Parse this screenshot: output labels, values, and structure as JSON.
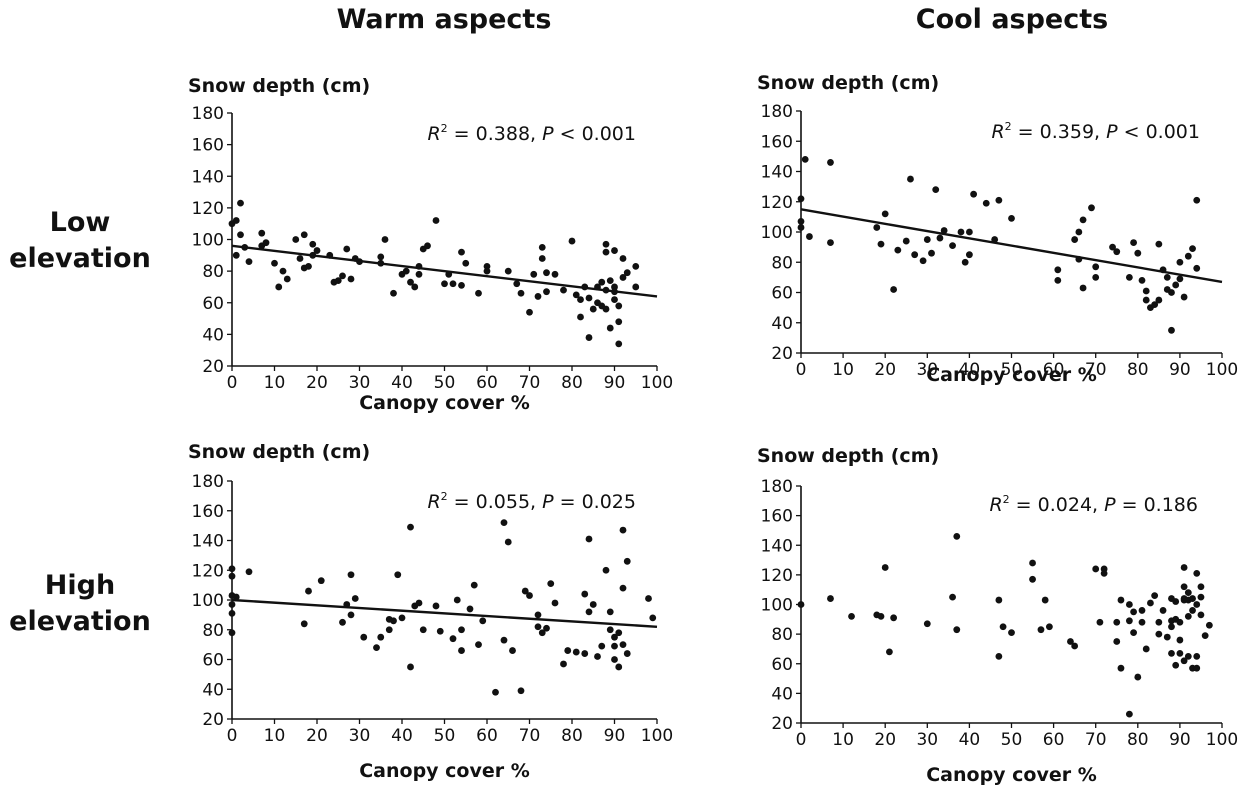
{
  "headers": {
    "col1": "Warm aspects",
    "col2": "Cool aspects",
    "row1": [
      "Low",
      "elevation"
    ],
    "row2": [
      "High",
      "elevation"
    ]
  },
  "chart_data": [
    {
      "type": "scatter",
      "panel": "Warm aspects, Low elevation",
      "xlabel": "Canopy cover %",
      "ylabel": "Snow depth (cm)",
      "xlim": [
        0,
        100
      ],
      "ylim": [
        20,
        180
      ],
      "xticks": [
        0,
        10,
        20,
        30,
        40,
        50,
        60,
        70,
        80,
        90,
        100
      ],
      "yticks": [
        20,
        40,
        60,
        80,
        100,
        120,
        140,
        160,
        180
      ],
      "annotation": {
        "r2_label": "R",
        "r2_sup": "2",
        "r2_value": " = 0.388, ",
        "p_label": "P",
        "p_value": " < 0.001"
      },
      "trendline": {
        "x": [
          0,
          100
        ],
        "y": [
          96,
          64
        ]
      },
      "points": [
        [
          0,
          110
        ],
        [
          1,
          112
        ],
        [
          1,
          90
        ],
        [
          2,
          123
        ],
        [
          2,
          103
        ],
        [
          3,
          95
        ],
        [
          4,
          86
        ],
        [
          7,
          104
        ],
        [
          7,
          96
        ],
        [
          8,
          98
        ],
        [
          10,
          85
        ],
        [
          11,
          70
        ],
        [
          12,
          80
        ],
        [
          13,
          75
        ],
        [
          15,
          100
        ],
        [
          16,
          88
        ],
        [
          17,
          103
        ],
        [
          17,
          82
        ],
        [
          18,
          83
        ],
        [
          19,
          90
        ],
        [
          19,
          97
        ],
        [
          20,
          93
        ],
        [
          23,
          90
        ],
        [
          24,
          73
        ],
        [
          25,
          74
        ],
        [
          26,
          77
        ],
        [
          27,
          94
        ],
        [
          28,
          75
        ],
        [
          29,
          88
        ],
        [
          30,
          86
        ],
        [
          35,
          85
        ],
        [
          35,
          89
        ],
        [
          36,
          100
        ],
        [
          38,
          66
        ],
        [
          40,
          78
        ],
        [
          41,
          80
        ],
        [
          42,
          73
        ],
        [
          43,
          70
        ],
        [
          44,
          83
        ],
        [
          44,
          78
        ],
        [
          45,
          94
        ],
        [
          46,
          96
        ],
        [
          48,
          112
        ],
        [
          50,
          72
        ],
        [
          51,
          78
        ],
        [
          52,
          72
        ],
        [
          54,
          92
        ],
        [
          54,
          71
        ],
        [
          55,
          85
        ],
        [
          58,
          66
        ],
        [
          60,
          83
        ],
        [
          60,
          80
        ],
        [
          65,
          80
        ],
        [
          67,
          72
        ],
        [
          68,
          66
        ],
        [
          70,
          54
        ],
        [
          71,
          78
        ],
        [
          72,
          64
        ],
        [
          73,
          95
        ],
        [
          73,
          88
        ],
        [
          74,
          79
        ],
        [
          74,
          67
        ],
        [
          76,
          78
        ],
        [
          78,
          68
        ],
        [
          80,
          99
        ],
        [
          81,
          65
        ],
        [
          82,
          62
        ],
        [
          82,
          51
        ],
        [
          83,
          70
        ],
        [
          84,
          38
        ],
        [
          84,
          63
        ],
        [
          85,
          56
        ],
        [
          86,
          70
        ],
        [
          86,
          60
        ],
        [
          87,
          73
        ],
        [
          87,
          58
        ],
        [
          88,
          92
        ],
        [
          88,
          97
        ],
        [
          88,
          68
        ],
        [
          88,
          56
        ],
        [
          89,
          44
        ],
        [
          89,
          74
        ],
        [
          90,
          93
        ],
        [
          90,
          70
        ],
        [
          90,
          67
        ],
        [
          90,
          62
        ],
        [
          91,
          48
        ],
        [
          91,
          34
        ],
        [
          91,
          58
        ],
        [
          92,
          76
        ],
        [
          92,
          88
        ],
        [
          93,
          79
        ],
        [
          95,
          83
        ],
        [
          95,
          70
        ]
      ]
    },
    {
      "type": "scatter",
      "panel": "Cool aspects, Low elevation",
      "xlabel": "Canopy cover %",
      "ylabel": "Snow depth (cm)",
      "xlim": [
        0,
        100
      ],
      "ylim": [
        20,
        180
      ],
      "xticks": [
        0,
        10,
        20,
        30,
        40,
        50,
        60,
        70,
        80,
        90,
        100
      ],
      "yticks": [
        20,
        40,
        60,
        80,
        100,
        120,
        140,
        160,
        180
      ],
      "annotation": {
        "r2_label": "R",
        "r2_sup": "2",
        "r2_value": " = 0.359, ",
        "p_label": "P",
        "p_value": " < 0.001"
      },
      "trendline": {
        "x": [
          0,
          100
        ],
        "y": [
          115,
          67
        ]
      },
      "points": [
        [
          0,
          122
        ],
        [
          0,
          107
        ],
        [
          0,
          103
        ],
        [
          1,
          148
        ],
        [
          2,
          97
        ],
        [
          7,
          146
        ],
        [
          7,
          93
        ],
        [
          18,
          103
        ],
        [
          19,
          92
        ],
        [
          20,
          112
        ],
        [
          22,
          62
        ],
        [
          23,
          88
        ],
        [
          25,
          94
        ],
        [
          26,
          135
        ],
        [
          27,
          85
        ],
        [
          29,
          81
        ],
        [
          30,
          95
        ],
        [
          31,
          86
        ],
        [
          32,
          128
        ],
        [
          33,
          96
        ],
        [
          34,
          101
        ],
        [
          36,
          91
        ],
        [
          38,
          100
        ],
        [
          39,
          80
        ],
        [
          40,
          100
        ],
        [
          40,
          85
        ],
        [
          41,
          125
        ],
        [
          44,
          119
        ],
        [
          46,
          95
        ],
        [
          47,
          121
        ],
        [
          50,
          109
        ],
        [
          61,
          75
        ],
        [
          61,
          68
        ],
        [
          65,
          95
        ],
        [
          66,
          82
        ],
        [
          66,
          100
        ],
        [
          67,
          63
        ],
        [
          67,
          108
        ],
        [
          69,
          116
        ],
        [
          70,
          77
        ],
        [
          70,
          70
        ],
        [
          74,
          90
        ],
        [
          75,
          87
        ],
        [
          78,
          70
        ],
        [
          79,
          93
        ],
        [
          80,
          86
        ],
        [
          81,
          68
        ],
        [
          82,
          61
        ],
        [
          82,
          55
        ],
        [
          83,
          50
        ],
        [
          84,
          52
        ],
        [
          85,
          55
        ],
        [
          85,
          92
        ],
        [
          86,
          75
        ],
        [
          87,
          70
        ],
        [
          87,
          62
        ],
        [
          88,
          35
        ],
        [
          88,
          60
        ],
        [
          89,
          65
        ],
        [
          90,
          80
        ],
        [
          90,
          69
        ],
        [
          91,
          57
        ],
        [
          92,
          84
        ],
        [
          93,
          89
        ],
        [
          94,
          121
        ],
        [
          94,
          76
        ]
      ]
    },
    {
      "type": "scatter",
      "panel": "Warm aspects, High elevation",
      "xlabel": "Canopy cover %",
      "ylabel": "Snow depth (cm)",
      "xlim": [
        0,
        100
      ],
      "ylim": [
        20,
        180
      ],
      "xticks": [
        0,
        10,
        20,
        30,
        40,
        50,
        60,
        70,
        80,
        90,
        100
      ],
      "yticks": [
        20,
        40,
        60,
        80,
        100,
        120,
        140,
        160,
        180
      ],
      "annotation": {
        "r2_label": "R",
        "r2_sup": "2",
        "r2_value": " = 0.055, ",
        "p_label": "P",
        "p_value": " = 0.025"
      },
      "trendline": {
        "x": [
          0,
          100
        ],
        "y": [
          100,
          82
        ]
      },
      "points": [
        [
          0,
          121
        ],
        [
          0,
          116
        ],
        [
          0,
          103
        ],
        [
          0,
          97
        ],
        [
          0,
          91
        ],
        [
          0,
          78
        ],
        [
          1,
          102
        ],
        [
          4,
          119
        ],
        [
          17,
          84
        ],
        [
          18,
          106
        ],
        [
          21,
          113
        ],
        [
          26,
          85
        ],
        [
          27,
          97
        ],
        [
          28,
          117
        ],
        [
          28,
          90
        ],
        [
          29,
          101
        ],
        [
          31,
          75
        ],
        [
          34,
          68
        ],
        [
          35,
          75
        ],
        [
          37,
          80
        ],
        [
          37,
          87
        ],
        [
          38,
          86
        ],
        [
          39,
          117
        ],
        [
          40,
          88
        ],
        [
          42,
          55
        ],
        [
          42,
          149
        ],
        [
          43,
          96
        ],
        [
          44,
          98
        ],
        [
          45,
          80
        ],
        [
          48,
          96
        ],
        [
          49,
          79
        ],
        [
          52,
          74
        ],
        [
          53,
          100
        ],
        [
          54,
          66
        ],
        [
          54,
          80
        ],
        [
          56,
          94
        ],
        [
          57,
          110
        ],
        [
          58,
          70
        ],
        [
          59,
          86
        ],
        [
          62,
          38
        ],
        [
          64,
          152
        ],
        [
          64,
          73
        ],
        [
          65,
          139
        ],
        [
          66,
          66
        ],
        [
          68,
          39
        ],
        [
          69,
          106
        ],
        [
          70,
          103
        ],
        [
          72,
          82
        ],
        [
          72,
          90
        ],
        [
          73,
          78
        ],
        [
          74,
          81
        ],
        [
          75,
          111
        ],
        [
          76,
          98
        ],
        [
          78,
          57
        ],
        [
          79,
          66
        ],
        [
          81,
          65
        ],
        [
          83,
          64
        ],
        [
          83,
          104
        ],
        [
          84,
          141
        ],
        [
          84,
          92
        ],
        [
          85,
          97
        ],
        [
          86,
          62
        ],
        [
          87,
          69
        ],
        [
          88,
          120
        ],
        [
          89,
          92
        ],
        [
          89,
          80
        ],
        [
          90,
          75
        ],
        [
          90,
          69
        ],
        [
          90,
          60
        ],
        [
          91,
          78
        ],
        [
          91,
          55
        ],
        [
          92,
          70
        ],
        [
          92,
          147
        ],
        [
          92,
          108
        ],
        [
          93,
          126
        ],
        [
          93,
          64
        ],
        [
          98,
          101
        ],
        [
          99,
          88
        ]
      ]
    },
    {
      "type": "scatter",
      "panel": "Cool aspects, High elevation",
      "xlabel": "Canopy cover %",
      "ylabel": "Snow depth (cm)",
      "xlim": [
        0,
        100
      ],
      "ylim": [
        20,
        180
      ],
      "xticks": [
        0,
        10,
        20,
        30,
        40,
        50,
        60,
        70,
        80,
        90,
        100
      ],
      "yticks": [
        20,
        40,
        60,
        80,
        100,
        120,
        140,
        160,
        180
      ],
      "annotation": {
        "r2_label": "R",
        "r2_sup": "2",
        "r2_value": " = 0.024, ",
        "p_label": "P",
        "p_value": " = 0.186"
      },
      "trendline": null,
      "points": [
        [
          0,
          100
        ],
        [
          7,
          104
        ],
        [
          12,
          92
        ],
        [
          18,
          93
        ],
        [
          19,
          92
        ],
        [
          20,
          125
        ],
        [
          21,
          68
        ],
        [
          22,
          91
        ],
        [
          30,
          87
        ],
        [
          36,
          105
        ],
        [
          37,
          146
        ],
        [
          37,
          83
        ],
        [
          47,
          103
        ],
        [
          47,
          65
        ],
        [
          48,
          85
        ],
        [
          50,
          81
        ],
        [
          55,
          128
        ],
        [
          55,
          117
        ],
        [
          57,
          83
        ],
        [
          58,
          103
        ],
        [
          59,
          85
        ],
        [
          64,
          75
        ],
        [
          65,
          72
        ],
        [
          70,
          124
        ],
        [
          71,
          88
        ],
        [
          72,
          124
        ],
        [
          72,
          121
        ],
        [
          75,
          88
        ],
        [
          75,
          75
        ],
        [
          76,
          57
        ],
        [
          76,
          103
        ],
        [
          78,
          100
        ],
        [
          78,
          89
        ],
        [
          78,
          26
        ],
        [
          79,
          95
        ],
        [
          79,
          81
        ],
        [
          80,
          51
        ],
        [
          81,
          96
        ],
        [
          81,
          88
        ],
        [
          82,
          70
        ],
        [
          83,
          101
        ],
        [
          84,
          106
        ],
        [
          85,
          88
        ],
        [
          85,
          80
        ],
        [
          86,
          96
        ],
        [
          87,
          78
        ],
        [
          88,
          89
        ],
        [
          88,
          85
        ],
        [
          88,
          104
        ],
        [
          88,
          67
        ],
        [
          89,
          102
        ],
        [
          89,
          90
        ],
        [
          89,
          59
        ],
        [
          90,
          67
        ],
        [
          90,
          88
        ],
        [
          90,
          76
        ],
        [
          91,
          125
        ],
        [
          91,
          112
        ],
        [
          91,
          103
        ],
        [
          91,
          104
        ],
        [
          91,
          62
        ],
        [
          92,
          108
        ],
        [
          92,
          92
        ],
        [
          92,
          103
        ],
        [
          92,
          65
        ],
        [
          93,
          96
        ],
        [
          93,
          104
        ],
        [
          93,
          57
        ],
        [
          94,
          121
        ],
        [
          94,
          100
        ],
        [
          94,
          65
        ],
        [
          94,
          57
        ],
        [
          95,
          112
        ],
        [
          95,
          93
        ],
        [
          95,
          105
        ],
        [
          96,
          79
        ],
        [
          97,
          86
        ]
      ]
    }
  ]
}
